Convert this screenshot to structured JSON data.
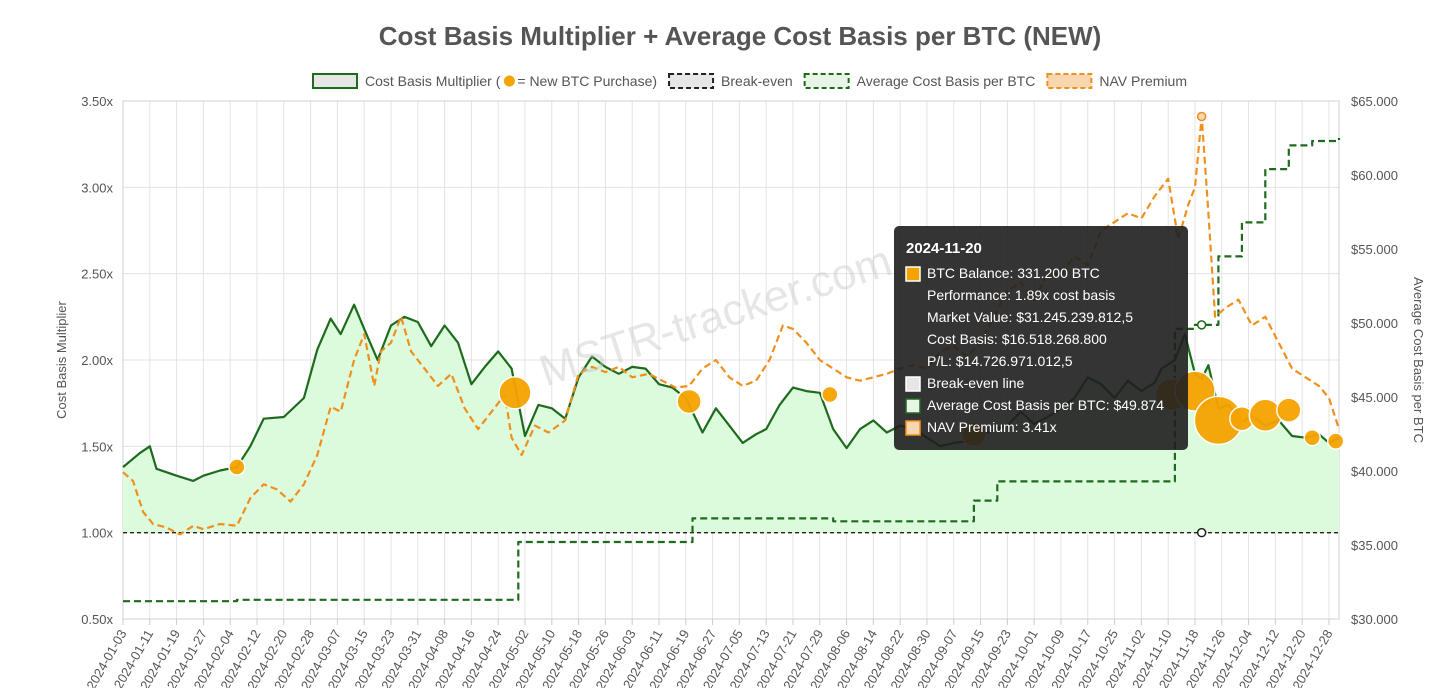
{
  "chart_data": {
    "type": "line",
    "title": "Cost Basis Multiplier + Average Cost Basis per BTC (NEW)",
    "watermark": "MSTR-tracker.com",
    "legend_placement": "top-center",
    "grid": true,
    "legend": [
      {
        "label": "Cost Basis Multiplier (",
        "suffix": " = New BTC Purchase)",
        "color": "#1e6b1e",
        "fill": "#e6e6e6",
        "style": "solid"
      },
      {
        "label": "Break-even",
        "color": "#222222",
        "fill": "#e6e6e6",
        "style": "dashed"
      },
      {
        "label": "Average Cost Basis per BTC",
        "color": "#1e6b1e",
        "fill": "#e6f5e6",
        "style": "dashed"
      },
      {
        "label": "NAV Premium",
        "color": "#f0901c",
        "fill": "#f7d6b0",
        "style": "dashed"
      }
    ],
    "y_left": {
      "label": "Cost Basis Multiplier",
      "ylim": [
        0.5,
        3.5
      ],
      "ticks": [
        "0.50x",
        "1.00x",
        "1.50x",
        "2.00x",
        "2.50x",
        "3.00x",
        "3.50x"
      ]
    },
    "y_right": {
      "label": "Average Cost Basis per BTC",
      "ylim": [
        30000,
        65000
      ],
      "ticks": [
        "$30.000",
        "$35.000",
        "$40.000",
        "$45.000",
        "$50.000",
        "$55.000",
        "$60.000",
        "$65.000"
      ]
    },
    "x": {
      "start": "2024-01-03",
      "end": "2024-12-31",
      "ticks": [
        "2024-01-03",
        "2024-01-11",
        "2024-01-19",
        "2024-01-27",
        "2024-02-04",
        "2024-02-12",
        "2024-02-20",
        "2024-02-28",
        "2024-03-07",
        "2024-03-15",
        "2024-03-23",
        "2024-03-31",
        "2024-04-08",
        "2024-04-16",
        "2024-04-24",
        "2024-05-02",
        "2024-05-10",
        "2024-05-18",
        "2024-05-26",
        "2024-06-03",
        "2024-06-11",
        "2024-06-19",
        "2024-06-27",
        "2024-07-05",
        "2024-07-13",
        "2024-07-21",
        "2024-07-29",
        "2024-08-06",
        "2024-08-14",
        "2024-08-22",
        "2024-08-30",
        "2024-09-07",
        "2024-09-15",
        "2024-09-23",
        "2024-10-01",
        "2024-10-09",
        "2024-10-17",
        "2024-10-25",
        "2024-11-02",
        "2024-11-10",
        "2024-11-18",
        "2024-11-26",
        "2024-12-04",
        "2024-12-12",
        "2024-12-20",
        "2024-12-28"
      ]
    },
    "series": [
      {
        "name": "Cost Basis Multiplier",
        "axis": "left",
        "color": "#1e6b1e",
        "fill": "#dcfadc",
        "dashed": false,
        "points": [
          [
            "2024-01-03",
            1.38
          ],
          [
            "2024-01-08",
            1.46
          ],
          [
            "2024-01-11",
            1.5
          ],
          [
            "2024-01-13",
            1.37
          ],
          [
            "2024-01-19",
            1.33
          ],
          [
            "2024-01-24",
            1.3
          ],
          [
            "2024-01-27",
            1.33
          ],
          [
            "2024-02-01",
            1.36
          ],
          [
            "2024-02-06",
            1.38
          ],
          [
            "2024-02-10",
            1.5
          ],
          [
            "2024-02-14",
            1.66
          ],
          [
            "2024-02-20",
            1.67
          ],
          [
            "2024-02-26",
            1.78
          ],
          [
            "2024-03-01",
            2.06
          ],
          [
            "2024-03-05",
            2.24
          ],
          [
            "2024-03-08",
            2.15
          ],
          [
            "2024-03-12",
            2.32
          ],
          [
            "2024-03-15",
            2.18
          ],
          [
            "2024-03-19",
            2.0
          ],
          [
            "2024-03-23",
            2.2
          ],
          [
            "2024-03-27",
            2.25
          ],
          [
            "2024-03-31",
            2.22
          ],
          [
            "2024-04-04",
            2.08
          ],
          [
            "2024-04-08",
            2.2
          ],
          [
            "2024-04-12",
            2.1
          ],
          [
            "2024-04-16",
            1.86
          ],
          [
            "2024-04-20",
            1.96
          ],
          [
            "2024-04-24",
            2.05
          ],
          [
            "2024-04-28",
            1.95
          ],
          [
            "2024-05-02",
            1.56
          ],
          [
            "2024-05-06",
            1.74
          ],
          [
            "2024-05-10",
            1.72
          ],
          [
            "2024-05-14",
            1.66
          ],
          [
            "2024-05-18",
            1.9
          ],
          [
            "2024-05-22",
            2.02
          ],
          [
            "2024-05-26",
            1.96
          ],
          [
            "2024-05-30",
            1.92
          ],
          [
            "2024-06-03",
            1.96
          ],
          [
            "2024-06-07",
            1.95
          ],
          [
            "2024-06-11",
            1.86
          ],
          [
            "2024-06-15",
            1.84
          ],
          [
            "2024-06-19",
            1.78
          ],
          [
            "2024-06-24",
            1.58
          ],
          [
            "2024-06-28",
            1.72
          ],
          [
            "2024-07-02",
            1.62
          ],
          [
            "2024-07-06",
            1.52
          ],
          [
            "2024-07-10",
            1.57
          ],
          [
            "2024-07-13",
            1.6
          ],
          [
            "2024-07-17",
            1.74
          ],
          [
            "2024-07-21",
            1.84
          ],
          [
            "2024-07-25",
            1.82
          ],
          [
            "2024-07-29",
            1.81
          ],
          [
            "2024-08-02",
            1.6
          ],
          [
            "2024-08-06",
            1.49
          ],
          [
            "2024-08-10",
            1.6
          ],
          [
            "2024-08-14",
            1.65
          ],
          [
            "2024-08-18",
            1.58
          ],
          [
            "2024-08-22",
            1.62
          ],
          [
            "2024-08-26",
            1.6
          ],
          [
            "2024-08-30",
            1.55
          ],
          [
            "2024-09-03",
            1.5
          ],
          [
            "2024-09-07",
            1.52
          ],
          [
            "2024-09-11",
            1.53
          ],
          [
            "2024-09-15",
            1.56
          ],
          [
            "2024-09-19",
            1.6
          ],
          [
            "2024-09-23",
            1.62
          ],
          [
            "2024-09-27",
            1.7
          ],
          [
            "2024-10-01",
            1.63
          ],
          [
            "2024-10-05",
            1.67
          ],
          [
            "2024-10-09",
            1.72
          ],
          [
            "2024-10-13",
            1.78
          ],
          [
            "2024-10-17",
            1.9
          ],
          [
            "2024-10-21",
            1.86
          ],
          [
            "2024-10-25",
            1.78
          ],
          [
            "2024-10-29",
            1.88
          ],
          [
            "2024-11-02",
            1.82
          ],
          [
            "2024-11-06",
            1.87
          ],
          [
            "2024-11-08",
            1.95
          ],
          [
            "2024-11-12",
            2.0
          ],
          [
            "2024-11-15",
            2.15
          ],
          [
            "2024-11-18",
            1.92
          ],
          [
            "2024-11-20",
            1.89
          ],
          [
            "2024-11-22",
            1.97
          ],
          [
            "2024-11-25",
            1.72
          ],
          [
            "2024-11-28",
            1.74
          ],
          [
            "2024-12-02",
            1.64
          ],
          [
            "2024-12-05",
            1.68
          ],
          [
            "2024-12-09",
            1.62
          ],
          [
            "2024-12-13",
            1.65
          ],
          [
            "2024-12-17",
            1.56
          ],
          [
            "2024-12-21",
            1.55
          ],
          [
            "2024-12-25",
            1.57
          ],
          [
            "2024-12-28",
            1.52
          ],
          [
            "2024-12-31",
            1.55
          ]
        ]
      },
      {
        "name": "Break-even",
        "axis": "left",
        "color": "#222222",
        "dashed": true,
        "points": [
          [
            "2024-01-03",
            1.0
          ],
          [
            "2024-12-31",
            1.0
          ]
        ]
      },
      {
        "name": "Average Cost Basis per BTC",
        "axis": "right",
        "color": "#1e6b1e",
        "dashed": true,
        "step": true,
        "points": [
          [
            "2024-01-03",
            31200
          ],
          [
            "2024-02-06",
            31300
          ],
          [
            "2024-04-29",
            31300
          ],
          [
            "2024-04-30",
            35200
          ],
          [
            "2024-06-20",
            35200
          ],
          [
            "2024-06-21",
            36800
          ],
          [
            "2024-08-01",
            36800
          ],
          [
            "2024-08-02",
            36600
          ],
          [
            "2024-09-12",
            36600
          ],
          [
            "2024-09-13",
            38000
          ],
          [
            "2024-09-20",
            39300
          ],
          [
            "2024-11-11",
            39300
          ],
          [
            "2024-11-12",
            49600
          ],
          [
            "2024-11-18",
            49874
          ],
          [
            "2024-11-25",
            54500
          ],
          [
            "2024-12-02",
            56800
          ],
          [
            "2024-12-09",
            60400
          ],
          [
            "2024-12-16",
            62000
          ],
          [
            "2024-12-23",
            62300
          ],
          [
            "2024-12-31",
            62500
          ]
        ]
      },
      {
        "name": "NAV Premium",
        "axis": "left",
        "color": "#f0901c",
        "dashed": true,
        "points": [
          [
            "2024-01-03",
            1.35
          ],
          [
            "2024-01-06",
            1.3
          ],
          [
            "2024-01-09",
            1.12
          ],
          [
            "2024-01-12",
            1.05
          ],
          [
            "2024-01-16",
            1.03
          ],
          [
            "2024-01-20",
            0.99
          ],
          [
            "2024-01-24",
            1.04
          ],
          [
            "2024-01-27",
            1.02
          ],
          [
            "2024-02-01",
            1.05
          ],
          [
            "2024-02-06",
            1.04
          ],
          [
            "2024-02-10",
            1.2
          ],
          [
            "2024-02-14",
            1.28
          ],
          [
            "2024-02-18",
            1.25
          ],
          [
            "2024-02-22",
            1.18
          ],
          [
            "2024-02-26",
            1.28
          ],
          [
            "2024-03-01",
            1.45
          ],
          [
            "2024-03-05",
            1.73
          ],
          [
            "2024-03-08",
            1.7
          ],
          [
            "2024-03-12",
            2.0
          ],
          [
            "2024-03-15",
            2.15
          ],
          [
            "2024-03-18",
            1.85
          ],
          [
            "2024-03-20",
            2.05
          ],
          [
            "2024-03-23",
            2.1
          ],
          [
            "2024-03-26",
            2.25
          ],
          [
            "2024-03-29",
            2.05
          ],
          [
            "2024-04-02",
            1.95
          ],
          [
            "2024-04-06",
            1.85
          ],
          [
            "2024-04-10",
            1.92
          ],
          [
            "2024-04-14",
            1.72
          ],
          [
            "2024-04-18",
            1.6
          ],
          [
            "2024-04-22",
            1.7
          ],
          [
            "2024-04-26",
            1.8
          ],
          [
            "2024-04-28",
            1.55
          ],
          [
            "2024-05-01",
            1.45
          ],
          [
            "2024-05-05",
            1.62
          ],
          [
            "2024-05-09",
            1.58
          ],
          [
            "2024-05-14",
            1.65
          ],
          [
            "2024-05-18",
            1.92
          ],
          [
            "2024-05-22",
            1.96
          ],
          [
            "2024-05-26",
            1.93
          ],
          [
            "2024-05-30",
            1.96
          ],
          [
            "2024-06-03",
            1.9
          ],
          [
            "2024-06-08",
            1.92
          ],
          [
            "2024-06-12",
            1.88
          ],
          [
            "2024-06-16",
            1.84
          ],
          [
            "2024-06-20",
            1.85
          ],
          [
            "2024-06-24",
            1.95
          ],
          [
            "2024-06-28",
            2.0
          ],
          [
            "2024-07-02",
            1.9
          ],
          [
            "2024-07-06",
            1.85
          ],
          [
            "2024-07-10",
            1.88
          ],
          [
            "2024-07-14",
            2.0
          ],
          [
            "2024-07-18",
            2.2
          ],
          [
            "2024-07-21",
            2.18
          ],
          [
            "2024-07-25",
            2.1
          ],
          [
            "2024-07-29",
            2.0
          ],
          [
            "2024-08-02",
            1.95
          ],
          [
            "2024-08-06",
            1.9
          ],
          [
            "2024-08-10",
            1.88
          ],
          [
            "2024-08-14",
            1.9
          ],
          [
            "2024-08-18",
            1.92
          ],
          [
            "2024-08-22",
            1.95
          ],
          [
            "2024-08-26",
            1.97
          ],
          [
            "2024-08-30",
            1.95
          ],
          [
            "2024-09-03",
            2.05
          ],
          [
            "2024-09-07",
            2.08
          ],
          [
            "2024-09-11",
            2.02
          ],
          [
            "2024-09-15",
            2.1
          ],
          [
            "2024-09-19",
            2.25
          ],
          [
            "2024-09-23",
            2.4
          ],
          [
            "2024-09-27",
            2.45
          ],
          [
            "2024-10-01",
            2.35
          ],
          [
            "2024-10-05",
            2.5
          ],
          [
            "2024-10-09",
            2.5
          ],
          [
            "2024-10-13",
            2.6
          ],
          [
            "2024-10-17",
            2.55
          ],
          [
            "2024-10-21",
            2.75
          ],
          [
            "2024-10-25",
            2.8
          ],
          [
            "2024-10-29",
            2.85
          ],
          [
            "2024-11-02",
            2.82
          ],
          [
            "2024-11-06",
            2.95
          ],
          [
            "2024-11-10",
            3.05
          ],
          [
            "2024-11-13",
            2.7
          ],
          [
            "2024-11-16",
            2.9
          ],
          [
            "2024-11-18",
            3.0
          ],
          [
            "2024-11-20",
            3.41
          ],
          [
            "2024-11-22",
            2.85
          ],
          [
            "2024-11-24",
            2.25
          ],
          [
            "2024-11-27",
            2.3
          ],
          [
            "2024-12-01",
            2.35
          ],
          [
            "2024-12-05",
            2.2
          ],
          [
            "2024-12-09",
            2.25
          ],
          [
            "2024-12-13",
            2.1
          ],
          [
            "2024-12-17",
            1.95
          ],
          [
            "2024-12-21",
            1.9
          ],
          [
            "2024-12-25",
            1.85
          ],
          [
            "2024-12-28",
            1.78
          ],
          [
            "2024-12-31",
            1.6
          ]
        ]
      }
    ],
    "purchases": [
      {
        "date": "2024-02-06",
        "value": 1.38,
        "size": 1
      },
      {
        "date": "2024-04-29",
        "value": 1.81,
        "size": 3
      },
      {
        "date": "2024-06-20",
        "value": 1.76,
        "size": 2
      },
      {
        "date": "2024-08-01",
        "value": 1.8,
        "size": 1
      },
      {
        "date": "2024-09-13",
        "value": 1.57,
        "size": 2
      },
      {
        "date": "2024-11-11",
        "value": 1.8,
        "size": 3
      },
      {
        "date": "2024-11-18",
        "value": 1.82,
        "size": 4
      },
      {
        "date": "2024-11-25",
        "value": 1.65,
        "size": 5
      },
      {
        "date": "2024-12-02",
        "value": 1.66,
        "size": 2
      },
      {
        "date": "2024-12-09",
        "value": 1.68,
        "size": 3
      },
      {
        "date": "2024-12-16",
        "value": 1.71,
        "size": 2
      },
      {
        "date": "2024-12-23",
        "value": 1.55,
        "size": 1
      },
      {
        "date": "2024-12-30",
        "value": 1.53,
        "size": 1
      }
    ],
    "tooltip": {
      "date": "2024-11-20",
      "rows": [
        {
          "text": "BTC Balance: 331.200 BTC",
          "swatch": "#f5a300",
          "swatch_border": "#ffffff"
        },
        {
          "text": "Performance: 1.89x cost basis",
          "swatch": ""
        },
        {
          "text": "Market Value: $31.245.239.812,5",
          "swatch": ""
        },
        {
          "text": "Cost Basis: $16.518.268.800",
          "swatch": ""
        },
        {
          "text": "P/L: $14.726.971.012,5",
          "swatch": ""
        },
        {
          "text": "Break-even line",
          "swatch": "#e6e6e6",
          "swatch_border": "#ffffff"
        },
        {
          "text": "Average Cost Basis per BTC: $49.874",
          "swatch": "#e6f5e6",
          "swatch_border": "#1e6b1e"
        },
        {
          "text": "NAV Premium: 3.41x",
          "swatch": "#f7d6b0",
          "swatch_border": "#f0901c"
        }
      ]
    }
  }
}
